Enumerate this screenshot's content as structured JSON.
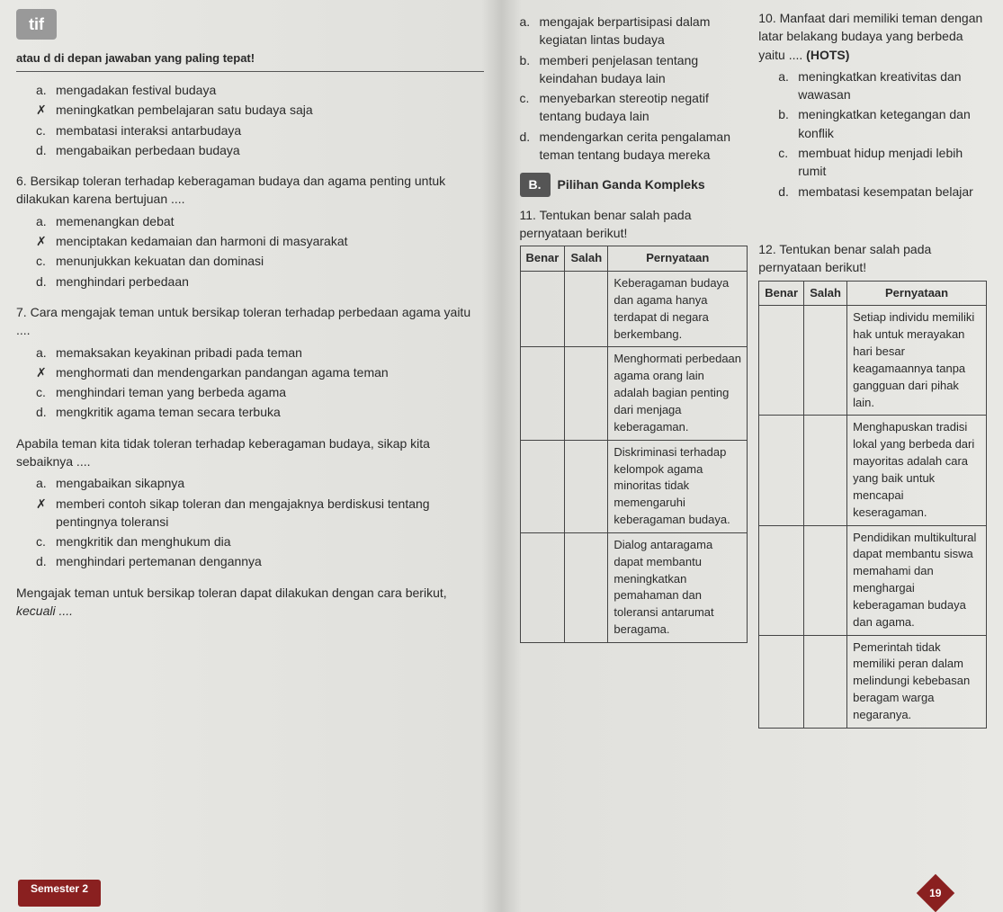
{
  "tab": "tif",
  "instruction": "atau d di depan jawaban yang paling tepat!",
  "left_questions": [
    {
      "num": "",
      "text": "",
      "opts": [
        {
          "l": "a.",
          "t": "mengadakan festival budaya",
          "mark": ""
        },
        {
          "l": "b.",
          "t": "meningkatkan pembelajaran satu budaya saja",
          "mark": "✗"
        },
        {
          "l": "c.",
          "t": "membatasi interaksi antarbudaya",
          "mark": ""
        },
        {
          "l": "d.",
          "t": "mengabaikan perbedaan budaya",
          "mark": ""
        }
      ]
    },
    {
      "num": "6.",
      "text": "Bersikap toleran terhadap keberagaman budaya dan agama penting untuk dilakukan karena bertujuan ....",
      "opts": [
        {
          "l": "a.",
          "t": "memenangkan debat",
          "mark": ""
        },
        {
          "l": "b.",
          "t": "menciptakan kedamaian dan harmoni di masyarakat",
          "mark": "✗"
        },
        {
          "l": "c.",
          "t": "menunjukkan kekuatan dan dominasi",
          "mark": ""
        },
        {
          "l": "d.",
          "t": "menghindari perbedaan",
          "mark": ""
        }
      ]
    },
    {
      "num": "7.",
      "text": "Cara mengajak teman untuk bersikap toleran terhadap perbedaan agama yaitu ....",
      "opts": [
        {
          "l": "a.",
          "t": "memaksakan keyakinan pribadi pada teman",
          "mark": ""
        },
        {
          "l": "b.",
          "t": "menghormati dan mendengarkan pandangan agama teman",
          "mark": "✗"
        },
        {
          "l": "c.",
          "t": "menghindari teman yang berbeda agama",
          "mark": ""
        },
        {
          "l": "d.",
          "t": "mengkritik agama teman secara terbuka",
          "mark": ""
        }
      ]
    },
    {
      "num": "",
      "text": "Apabila teman kita tidak toleran terhadap keberagaman budaya, sikap kita sebaiknya ....",
      "opts": [
        {
          "l": "a.",
          "t": "mengabaikan sikapnya",
          "mark": ""
        },
        {
          "l": "b.",
          "t": "memberi contoh sikap toleran dan mengajaknya berdiskusi tentang pentingnya toleransi",
          "mark": "✗"
        },
        {
          "l": "c.",
          "t": "mengkritik dan menghukum dia",
          "mark": ""
        },
        {
          "l": "d.",
          "t": "menghindari pertemanan dengannya",
          "mark": ""
        }
      ]
    }
  ],
  "closing_text": "Mengajak teman untuk bersikap toleran dapat dilakukan dengan cara berikut,",
  "closing_italic": "kecuali ....",
  "q9_opts": [
    {
      "l": "a.",
      "t": "mengajak berpartisipasi dalam kegiatan lintas budaya"
    },
    {
      "l": "b.",
      "t": "memberi penjelasan tentang keindahan budaya lain"
    },
    {
      "l": "c.",
      "t": "menyebarkan stereotip negatif tentang budaya lain"
    },
    {
      "l": "d.",
      "t": "mendengarkan cerita pengalaman teman tentang budaya mereka"
    }
  ],
  "q10": {
    "num": "10.",
    "text": "Manfaat dari memiliki teman dengan latar belakang budaya yang berbeda yaitu ....",
    "hots": "(HOTS)",
    "opts": [
      {
        "l": "a.",
        "t": "meningkatkan kreativitas dan wawasan"
      },
      {
        "l": "b.",
        "t": "meningkatkan ketegangan dan konflik"
      },
      {
        "l": "c.",
        "t": "membuat hidup menjadi lebih rumit"
      },
      {
        "l": "d.",
        "t": "membatasi kesempatan belajar"
      }
    ]
  },
  "sectionB": {
    "badge": "B.",
    "title": "Pilihan Ganda Kompleks"
  },
  "q11": {
    "num": "11.",
    "intro": "Tentukan benar salah pada pernyataan berikut!",
    "headers": {
      "benar": "Benar",
      "salah": "Salah",
      "pern": "Pernyataan"
    },
    "rows": [
      "Keberagaman budaya dan agama hanya terdapat di negara berkembang.",
      "Menghormati perbedaan agama orang lain adalah bagian penting dari menjaga keberagaman.",
      "Diskriminasi terhadap kelompok agama minoritas tidak memengaruhi keberagaman budaya.",
      "Dialog antaragama dapat membantu meningkatkan pemahaman dan toleransi antarumat beragama."
    ]
  },
  "q12": {
    "num": "12.",
    "intro": "Tentukan benar salah pada pernyataan berikut!",
    "headers": {
      "benar": "Benar",
      "salah": "Salah",
      "pern": "Pernyataan"
    },
    "rows": [
      "Setiap individu memiliki hak untuk merayakan hari besar keagamaannya tanpa gangguan dari pihak lain.",
      "Menghapuskan tradisi lokal yang berbeda dari mayoritas adalah cara yang baik untuk mencapai keseragaman.",
      "Pendidikan multikultural dapat membantu siswa memahami dan menghargai keberagaman budaya dan agama.",
      "Pemerintah tidak memiliki peran dalam melindungi kebebasan beragam warga negaranya."
    ]
  },
  "footer": {
    "semester": "Semester 2",
    "page": "19"
  }
}
